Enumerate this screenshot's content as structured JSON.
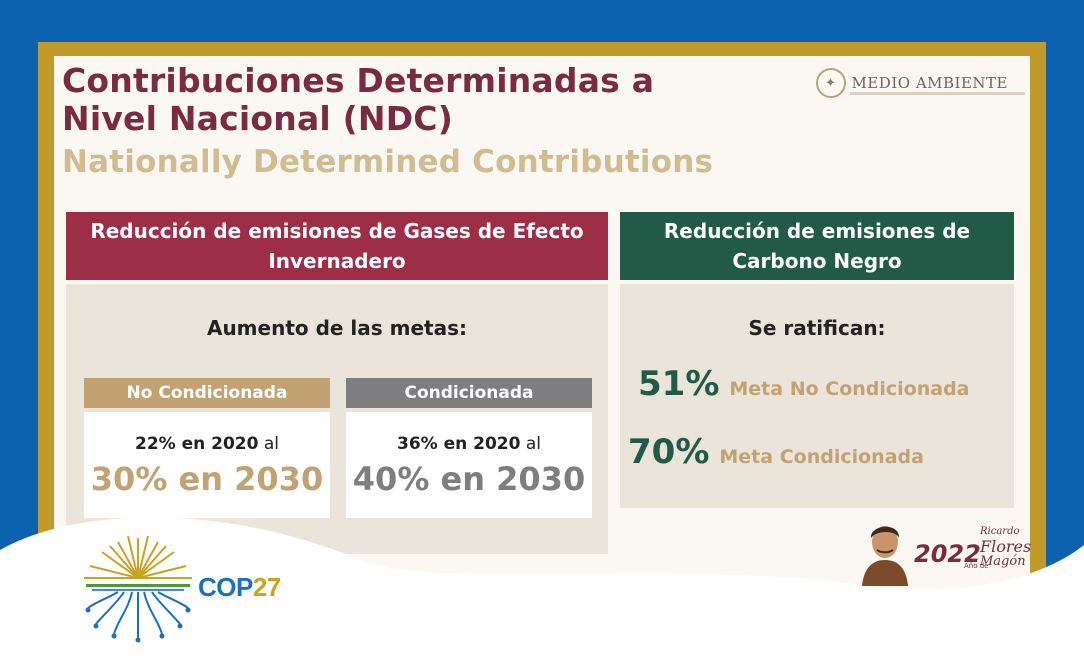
{
  "slide": {
    "title_line1": "Contribuciones Determinadas a",
    "title_line2": "Nivel Nacional (NDC)",
    "subtitle": "Nationally Determined Contributions",
    "logo_text": "MEDIO AMBIENTE"
  },
  "left_panel": {
    "header": "Reducción de emisiones de Gases de Efecto Invernadero",
    "subheading": "Aumento de las metas:",
    "unconditional": {
      "tag": "No Condicionada",
      "from_pct": "22% en 2020",
      "connector": "al",
      "to_pct": "30% en 2030"
    },
    "conditional": {
      "tag": "Condicionada",
      "from_pct": "36% en 2020",
      "connector": "al",
      "to_pct": "40% en 2030"
    }
  },
  "right_panel": {
    "header": "Reducción de emisiones de Carbono Negro",
    "subheading": "Se ratifican:",
    "items": [
      {
        "pct": "51%",
        "label": "Meta No Condicionada"
      },
      {
        "pct": "70%",
        "label": "Meta Condicionada"
      }
    ]
  },
  "cop_logo": {
    "text_main": "COP",
    "text_year": "27"
  },
  "flores_magon_logo": {
    "year": "2022",
    "anio": "Año de",
    "name_first": "Ricardo",
    "name_mid": "Flores",
    "name_last": "Magón"
  },
  "colors": {
    "background_blue": "#0d62b0",
    "frame_gold": "#c29a2a",
    "maroon": "#9c2e48",
    "green": "#215a47",
    "tan": "#c2a272",
    "gray": "#7e7e80"
  }
}
